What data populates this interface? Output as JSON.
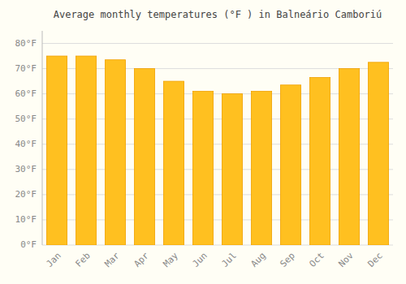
{
  "chart_data": {
    "type": "bar",
    "title": "Average monthly temperatures (°F ) in Balneário Camboriú",
    "categories": [
      "Jan",
      "Feb",
      "Mar",
      "Apr",
      "May",
      "Jun",
      "Jul",
      "Aug",
      "Sep",
      "Oct",
      "Nov",
      "Dec"
    ],
    "values": [
      75,
      75,
      73.5,
      70,
      65,
      61,
      60,
      61,
      63.5,
      66.5,
      70,
      72.5
    ],
    "color": "#FFC020",
    "ylim": [
      0,
      85
    ],
    "yticks": [
      {
        "value": 0,
        "label": "0°F"
      },
      {
        "value": 10,
        "label": "10°F"
      },
      {
        "value": 20,
        "label": "20°F"
      },
      {
        "value": 30,
        "label": "30°F"
      },
      {
        "value": 40,
        "label": "40°F"
      },
      {
        "value": 50,
        "label": "50°F"
      },
      {
        "value": 60,
        "label": "60°F"
      },
      {
        "value": 70,
        "label": "70°F"
      },
      {
        "value": 80,
        "label": "80°F"
      }
    ],
    "grid": true
  }
}
